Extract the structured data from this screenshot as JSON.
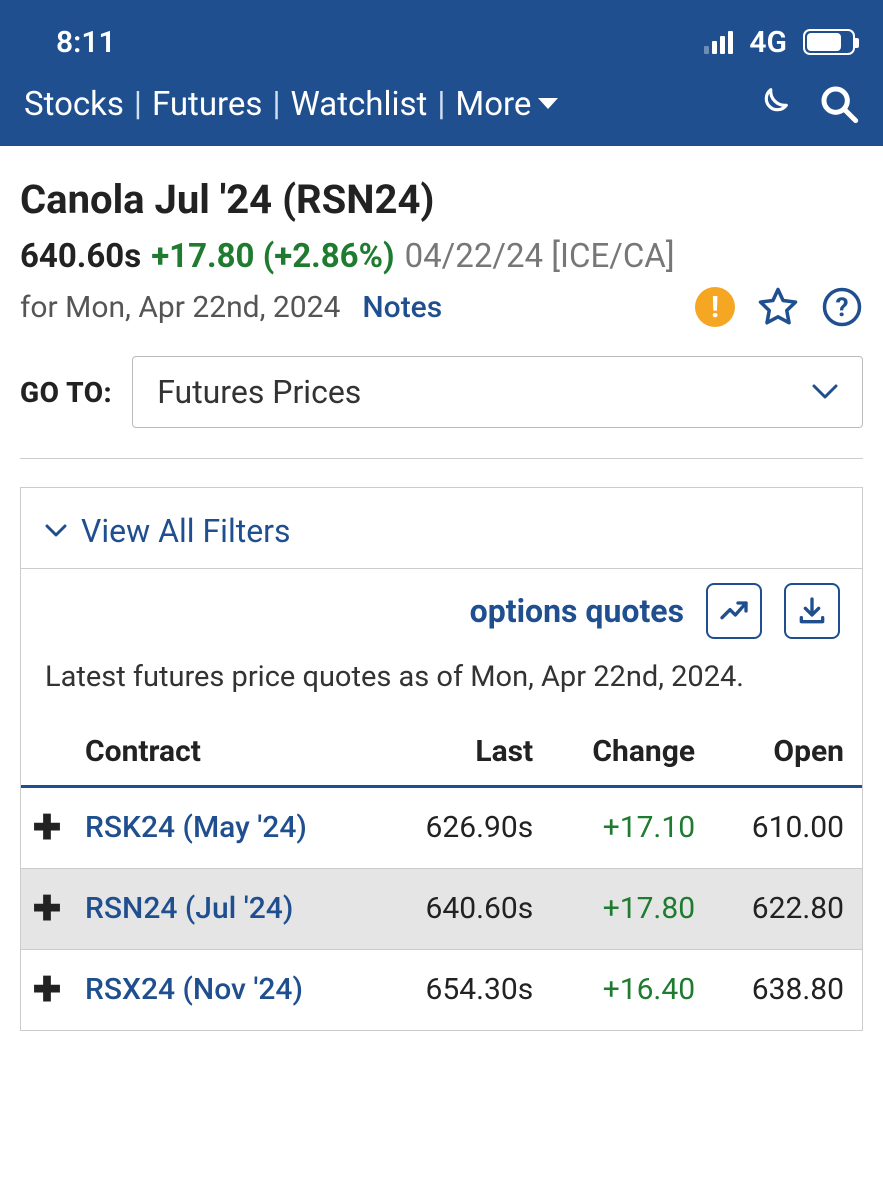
{
  "status": {
    "time": "8:11",
    "network": "4G"
  },
  "nav": {
    "items": [
      "Stocks",
      "Futures",
      "Watchlist"
    ],
    "more_label": "More"
  },
  "header": {
    "title": "Canola Jul '24 (RSN24)",
    "last": "640.60s",
    "change": "+17.80 (+2.86%)",
    "date_exchange": "04/22/24 [ICE/CA]",
    "subline": "for Mon, Apr 22nd, 2024",
    "notes_label": "Notes"
  },
  "goto": {
    "label": "GO TO:",
    "selected": "Futures Prices"
  },
  "panel": {
    "filters_label": "View All Filters",
    "options_label": "options quotes",
    "caption": "Latest futures price quotes as of Mon, Apr 22nd, 2024."
  },
  "table": {
    "columns": [
      "",
      "Contract",
      "Last",
      "Change",
      "Open"
    ],
    "rows": [
      {
        "contract": "RSK24 (May '24)",
        "last": "626.90s",
        "change": "+17.10",
        "open": "610.00",
        "highlight": false
      },
      {
        "contract": "RSN24 (Jul '24)",
        "last": "640.60s",
        "change": "+17.80",
        "open": "622.80",
        "highlight": true
      },
      {
        "contract": "RSX24 (Nov '24)",
        "last": "654.30s",
        "change": "+16.40",
        "open": "638.80",
        "highlight": false
      }
    ]
  },
  "colors": {
    "brand": "#1f4f8f",
    "positive": "#1e7b2f",
    "alert": "#f5a623"
  }
}
